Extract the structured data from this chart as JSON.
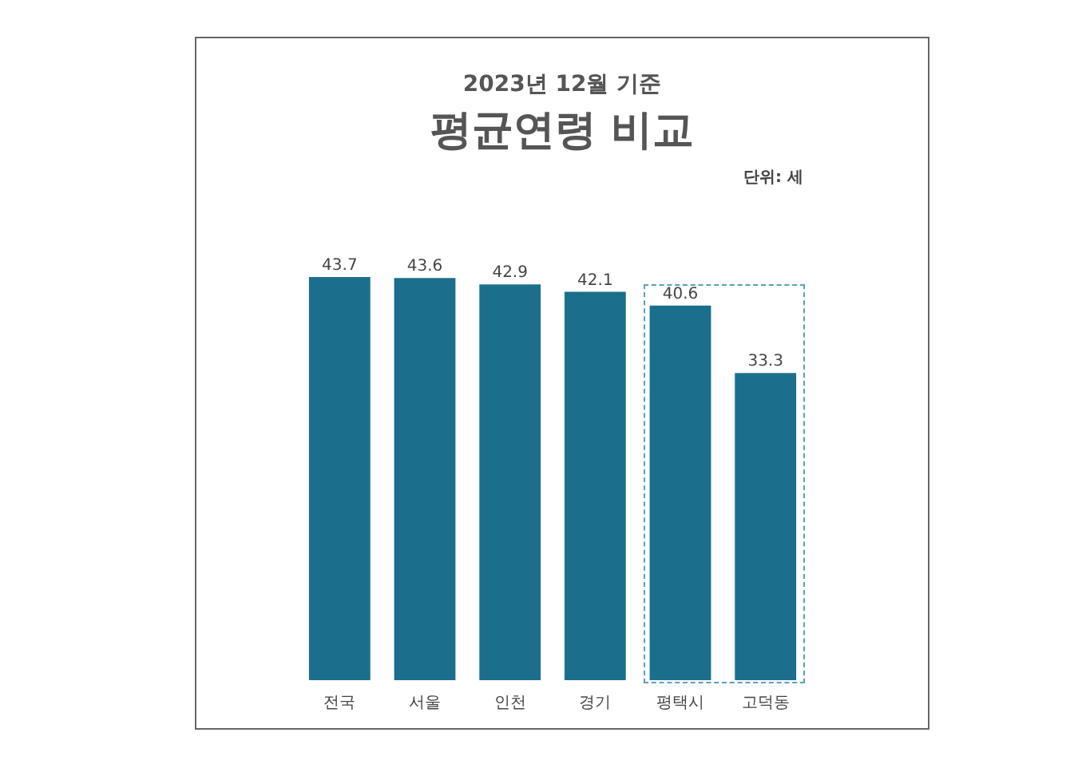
{
  "chart_data": {
    "type": "bar",
    "title": "평균연령 비교",
    "subtitle": "2023년 12월 기준",
    "annotations": [
      "단위: 세"
    ],
    "categories": [
      "전국",
      "서울",
      "인천",
      "경기",
      "평택시",
      "고덕동"
    ],
    "values": [
      43.7,
      43.6,
      42.9,
      42.1,
      40.6,
      33.3
    ],
    "color": "#1b6f8c",
    "data_labels": true,
    "grid": false,
    "legend": false
  }
}
